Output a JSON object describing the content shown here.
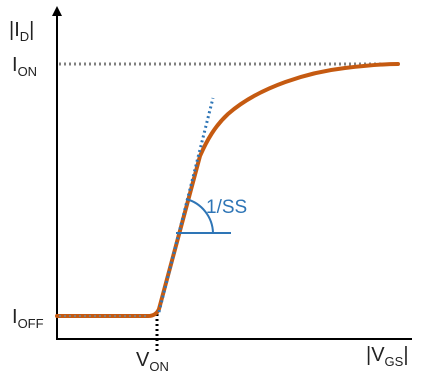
{
  "labels": {
    "y_axis": {
      "bars": "|I",
      "sub": "D",
      "close": "|"
    },
    "x_axis": {
      "bars": "|V",
      "sub": "GS",
      "close": "|"
    },
    "i_on": {
      "main": "I",
      "sub": "ON"
    },
    "i_off": {
      "main": "I",
      "sub": "OFF"
    },
    "v_on": {
      "main": "V",
      "sub": "ON"
    },
    "slope": "1/SS"
  },
  "colors": {
    "axis": "#000000",
    "curve": "#c55a11",
    "guide": "#2e75b6",
    "reference_line": "#7f7f7f",
    "text": "#222222"
  }
}
